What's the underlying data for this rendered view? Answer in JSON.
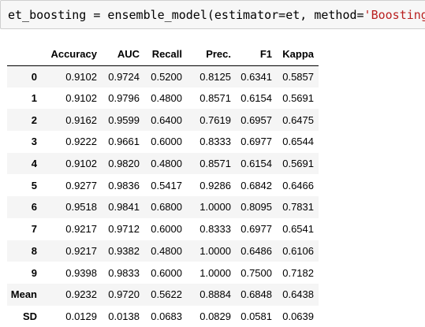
{
  "code_cell": {
    "prefix": "et_boosting = ensemble_model(estimator=et, method=",
    "string_arg": "'Boosting'",
    "suffix": ")"
  },
  "results_table": {
    "columns": [
      "",
      "Accuracy",
      "AUC",
      "Recall",
      "Prec.",
      "F1",
      "Kappa"
    ],
    "rows": [
      {
        "label": "0",
        "values": [
          "0.9102",
          "0.9724",
          "0.5200",
          "0.8125",
          "0.6341",
          "0.5857"
        ]
      },
      {
        "label": "1",
        "values": [
          "0.9102",
          "0.9796",
          "0.4800",
          "0.8571",
          "0.6154",
          "0.5691"
        ]
      },
      {
        "label": "2",
        "values": [
          "0.9162",
          "0.9599",
          "0.6400",
          "0.7619",
          "0.6957",
          "0.6475"
        ]
      },
      {
        "label": "3",
        "values": [
          "0.9222",
          "0.9661",
          "0.6000",
          "0.8333",
          "0.6977",
          "0.6544"
        ]
      },
      {
        "label": "4",
        "values": [
          "0.9102",
          "0.9820",
          "0.4800",
          "0.8571",
          "0.6154",
          "0.5691"
        ]
      },
      {
        "label": "5",
        "values": [
          "0.9277",
          "0.9836",
          "0.5417",
          "0.9286",
          "0.6842",
          "0.6466"
        ]
      },
      {
        "label": "6",
        "values": [
          "0.9518",
          "0.9841",
          "0.6800",
          "1.0000",
          "0.8095",
          "0.7831"
        ]
      },
      {
        "label": "7",
        "values": [
          "0.9217",
          "0.9712",
          "0.6000",
          "0.8333",
          "0.6977",
          "0.6541"
        ]
      },
      {
        "label": "8",
        "values": [
          "0.9217",
          "0.9382",
          "0.4800",
          "1.0000",
          "0.6486",
          "0.6106"
        ]
      },
      {
        "label": "9",
        "values": [
          "0.9398",
          "0.9833",
          "0.6000",
          "1.0000",
          "0.7500",
          "0.7182"
        ]
      },
      {
        "label": "Mean",
        "values": [
          "0.9232",
          "0.9720",
          "0.5622",
          "0.8884",
          "0.6848",
          "0.6438"
        ]
      },
      {
        "label": "SD",
        "values": [
          "0.0129",
          "0.0138",
          "0.0683",
          "0.0829",
          "0.0581",
          "0.0639"
        ]
      }
    ]
  }
}
